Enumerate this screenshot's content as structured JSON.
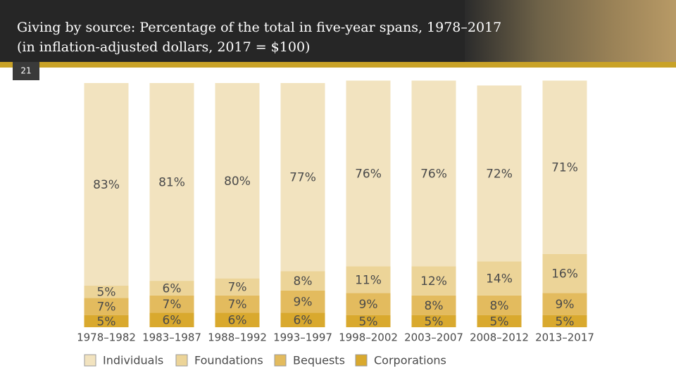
{
  "header": {
    "title_lines": [
      "Giving by source: Percentage of the total in five-year spans, 1978–2017",
      "(in inflation-adjusted dollars, 2017 = $100)"
    ],
    "slide_number": "21"
  },
  "chart_data": {
    "type": "stacked_bar",
    "categories": [
      "1978–1982",
      "1983–1987",
      "1988–1992",
      "1993–1997",
      "1998–2002",
      "2003–2007",
      "2008–2012",
      "2013–2017"
    ],
    "ylim": [
      0,
      100
    ],
    "series": [
      {
        "name": "Corporations",
        "color": "#d9a92e",
        "values": [
          5,
          6,
          6,
          6,
          5,
          5,
          5,
          5
        ],
        "value_labels": [
          "5%",
          "6%",
          "6%",
          "6%",
          "5%",
          "5%",
          "5%",
          "5%"
        ]
      },
      {
        "name": "Bequests",
        "color": "#e3bb5e",
        "values": [
          7,
          7,
          7,
          9,
          9,
          8,
          8,
          9
        ],
        "value_labels": [
          "7%",
          "7%",
          "7%",
          "9%",
          "9%",
          "8%",
          "8%",
          "9%"
        ]
      },
      {
        "name": "Foundations",
        "color": "#ecd498",
        "values": [
          5,
          6,
          7,
          8,
          11,
          12,
          14,
          16
        ],
        "value_labels": [
          "5%",
          "6%",
          "7%",
          "8%",
          "11%",
          "12%",
          "14%",
          "16%"
        ]
      },
      {
        "name": "Individuals",
        "color": "#f2e3bf",
        "values": [
          83,
          81,
          80,
          77,
          76,
          76,
          72,
          71
        ],
        "value_labels": [
          "83%",
          "81%",
          "80%",
          "77%",
          "76%",
          "76%",
          "72%",
          "71%"
        ]
      }
    ],
    "legend_order": [
      "Individuals",
      "Foundations",
      "Bequests",
      "Corporations"
    ]
  }
}
